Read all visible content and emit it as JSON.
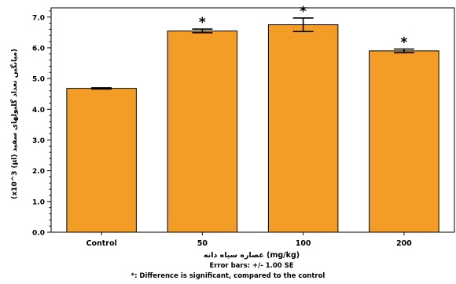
{
  "chart_data": {
    "type": "bar",
    "categories": [
      "Control",
      "50",
      "100",
      "200"
    ],
    "values": [
      4.68,
      6.55,
      6.75,
      5.9
    ],
    "errors": [
      0.02,
      0.06,
      0.22,
      0.06
    ],
    "significance": [
      "",
      "*",
      "*",
      "*"
    ],
    "ylabel": "(x10^3 (µl) میانگین تعداد گلبولهای سفید)",
    "xlabel": "(mg/kg) عصاره سیاه دانه",
    "error_note": "Error bars: +/- 1.00 SE",
    "footnote": "*: Difference is significant, compared to the control",
    "ylim": [
      0,
      7.3
    ],
    "yticks": [
      "0.0",
      "1.0",
      "2.0",
      "3.0",
      "4.0",
      "5.0",
      "6.0",
      "7.0"
    ],
    "bar_color": "#f39c26",
    "bar_edge_color": "#000000"
  }
}
